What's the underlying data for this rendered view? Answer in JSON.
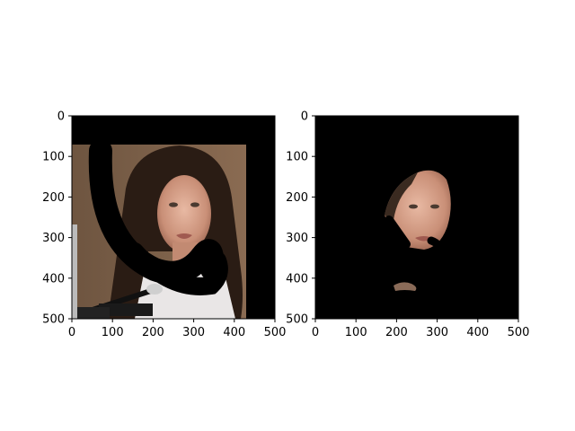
{
  "figure": {
    "background": "#ffffff"
  },
  "chart_data": [
    {
      "type": "image",
      "panel": "left",
      "content": "face photo with black masked regions",
      "xlim": [
        0,
        500
      ],
      "ylim": [
        500,
        0
      ],
      "xticks": [
        0,
        100,
        200,
        300,
        400,
        500
      ],
      "yticks": [
        0,
        100,
        200,
        300,
        400,
        500
      ],
      "xtick_labels": [
        "0",
        "100",
        "200",
        "300",
        "400",
        "500"
      ],
      "ytick_labels": [
        "0",
        "100",
        "200",
        "300",
        "400",
        "500"
      ],
      "grid": false
    },
    {
      "type": "image",
      "panel": "right",
      "content": "masked face crop on black background",
      "xlim": [
        0,
        500
      ],
      "ylim": [
        500,
        0
      ],
      "xticks": [
        0,
        100,
        200,
        300,
        400,
        500
      ],
      "yticks": [
        0,
        100,
        200,
        300,
        400,
        500
      ],
      "xtick_labels": [
        "0",
        "100",
        "200",
        "300",
        "400",
        "500"
      ],
      "ytick_labels": [
        "0",
        "100",
        "200",
        "300",
        "400",
        "500"
      ],
      "grid": false
    }
  ]
}
